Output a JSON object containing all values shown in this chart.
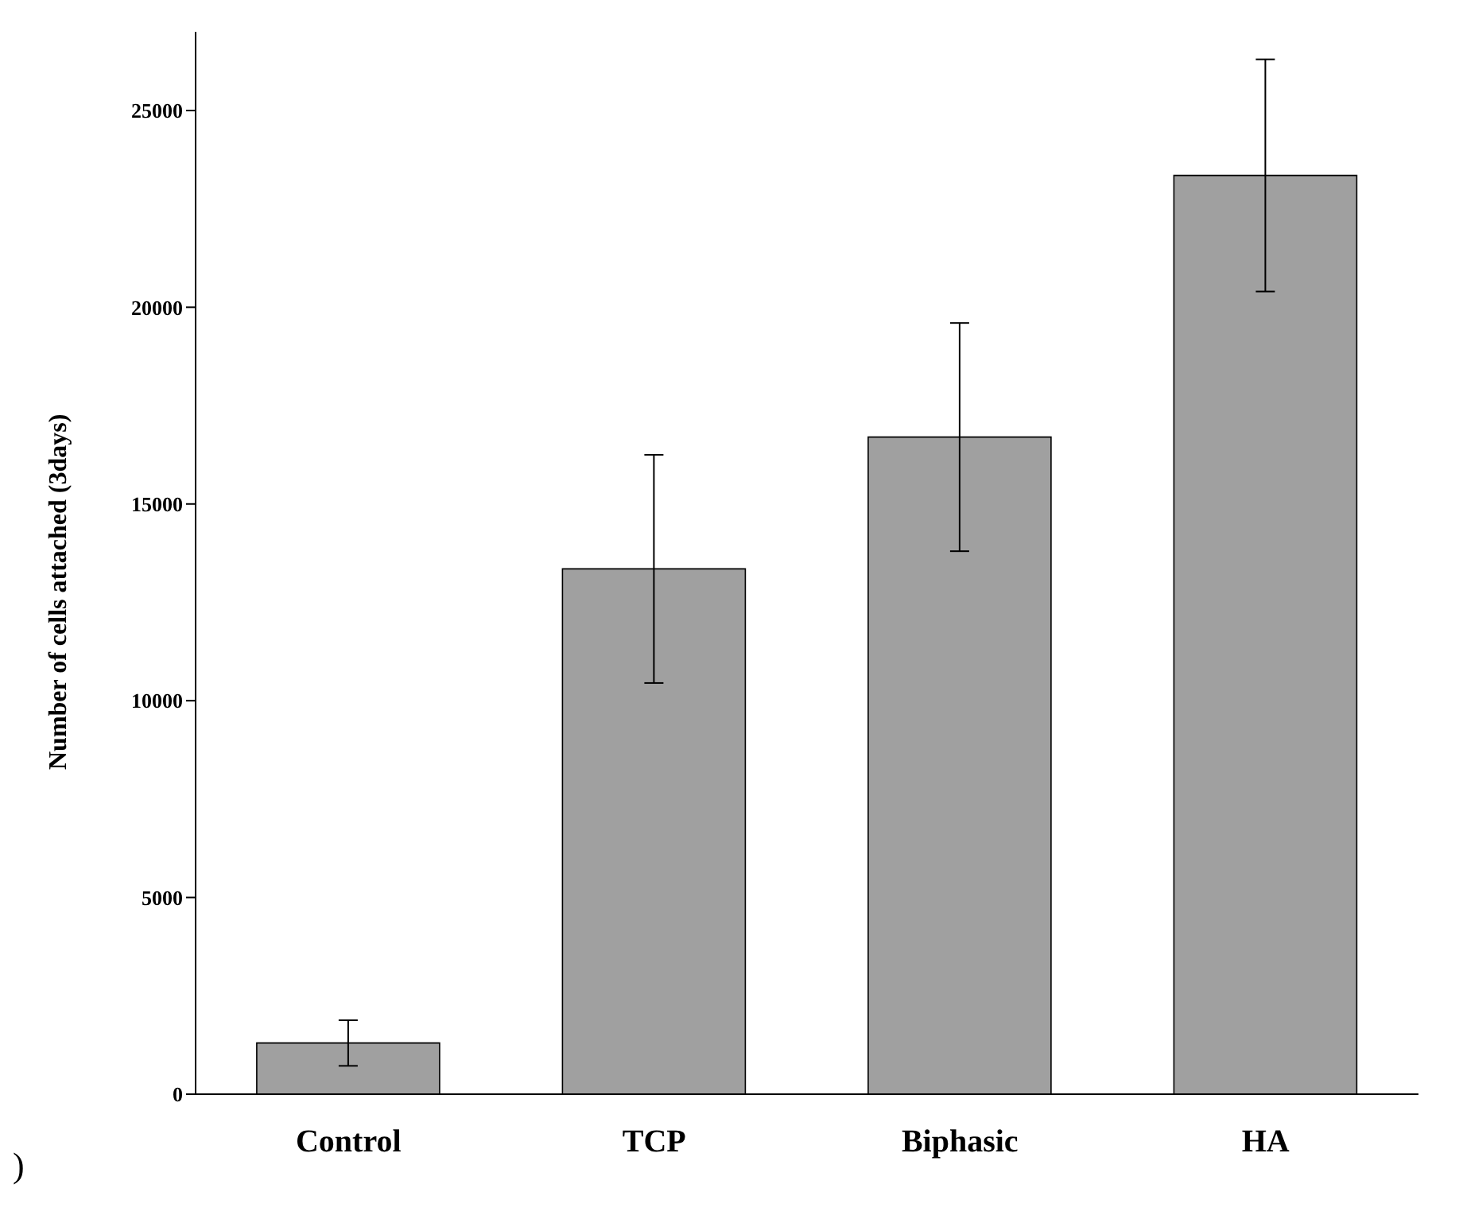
{
  "chart_data": {
    "type": "bar",
    "ylabel": "Number of cells attached (3days)",
    "categories": [
      "Control",
      "TCP",
      "Biphasic",
      "HA"
    ],
    "values": [
      1300,
      13350,
      16700,
      23350
    ],
    "errors": [
      580,
      2900,
      2900,
      2950
    ],
    "color": "#a0a0a0",
    "ylim": [
      0,
      27000
    ],
    "yticks": [
      0,
      5000,
      10000,
      15000,
      20000,
      25000
    ],
    "annotations": [
      ")"
    ]
  }
}
